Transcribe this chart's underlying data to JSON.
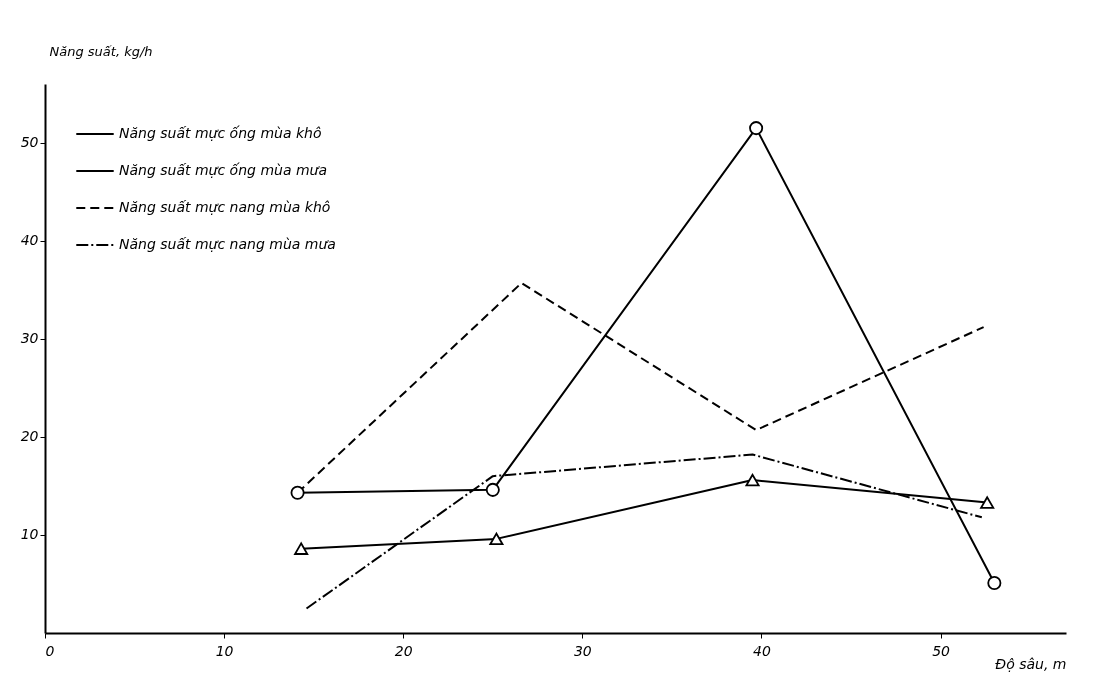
{
  "chart_data": {
    "type": "line",
    "xlabel": "Độ sâu, m",
    "ylabel": "Năng suất, kg/h",
    "xlim": [
      0,
      57
    ],
    "xticks": [
      0,
      10,
      20,
      30,
      40,
      50
    ],
    "ylim": [
      0,
      56
    ],
    "yticks": [
      10,
      20,
      30,
      40,
      50
    ],
    "grid": false,
    "legend": "top left",
    "series": [
      {
        "name": "Năng suất mực ống mùa khô",
        "color": "#000000",
        "marker": "circle",
        "line_style": "solid",
        "x": [
          14.1,
          25.0,
          39.7,
          53.0
        ],
        "values": [
          14.3,
          14.6,
          51.5,
          5.1
        ]
      },
      {
        "name": "Năng suất mực ống mùa mưa",
        "color": "#000000",
        "marker": "triangle",
        "line_style": "solid",
        "x": [
          14.3,
          25.2,
          39.5,
          52.6
        ],
        "values": [
          8.6,
          9.6,
          15.6,
          13.3
        ]
      },
      {
        "name": "Năng suất mực nang mùa khô",
        "color": "#000000",
        "marker": "none",
        "line_style": "dashed",
        "x": [
          14.1,
          26.6,
          39.7,
          52.4
        ],
        "values": [
          14.3,
          35.7,
          20.7,
          31.2
        ]
      },
      {
        "name": "Năng suất mực nang mùa mưa",
        "color": "#000000",
        "marker": "none",
        "line_style": "dashdot",
        "x": [
          14.6,
          25.0,
          39.5,
          52.3
        ],
        "values": [
          2.5,
          16.0,
          18.2,
          11.8
        ]
      }
    ]
  }
}
